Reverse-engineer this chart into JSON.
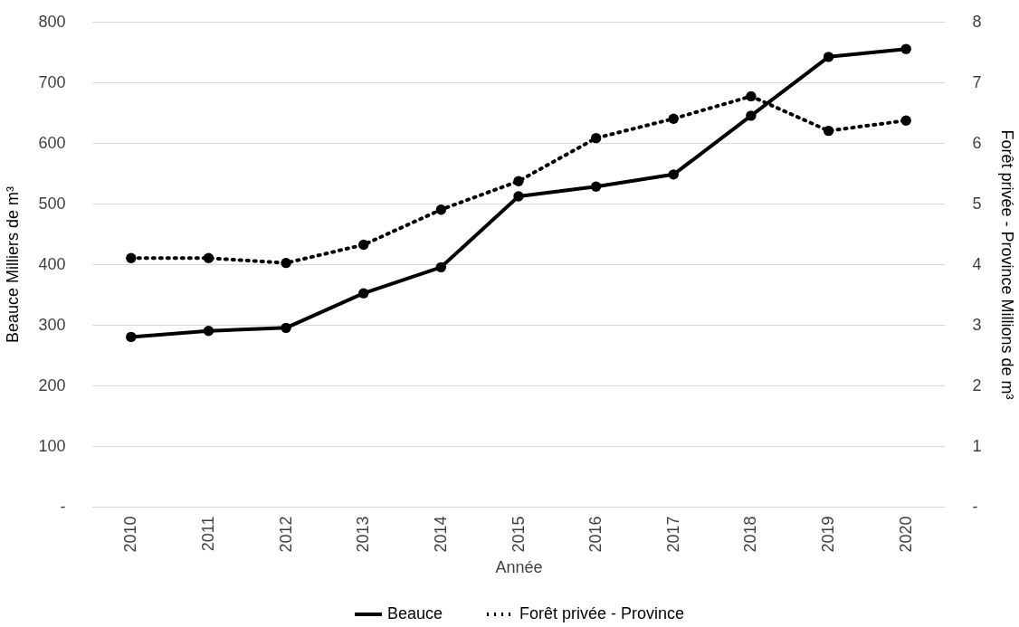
{
  "chart_data": {
    "type": "line",
    "xlabel": "Année",
    "ylabel": "Beauce Milliers de m³",
    "y2label": "Forêt privée - Province Millions de m³",
    "categories": [
      "2010",
      "2011",
      "2012",
      "2013",
      "2014",
      "2015",
      "2016",
      "2017",
      "2018",
      "2019",
      "2020"
    ],
    "series": [
      {
        "name": "Beauce",
        "color": "#000000",
        "line_style": "solid",
        "values": [
          280,
          290,
          295,
          352,
          395,
          512,
          528,
          548,
          645,
          742,
          755
        ]
      },
      {
        "name": "Forêt privée - Province",
        "color": "#000000",
        "line_style": "dotted",
        "axis": "y2",
        "values": [
          4.1,
          4.1,
          4.02,
          4.32,
          4.9,
          5.37,
          6.08,
          6.4,
          6.77,
          6.2,
          6.37
        ]
      }
    ],
    "ylim": [
      0,
      800
    ],
    "yticks": [
      {
        "value": 0,
        "label": "-"
      },
      100,
      200,
      300,
      400,
      500,
      600,
      700,
      800
    ],
    "y2lim": [
      0,
      8
    ],
    "y2ticks": [
      {
        "value": 0,
        "label": "-"
      },
      1,
      2,
      3,
      4,
      5,
      6,
      7,
      8
    ],
    "grid": "y",
    "legend": "bottom",
    "marker": "circle"
  }
}
